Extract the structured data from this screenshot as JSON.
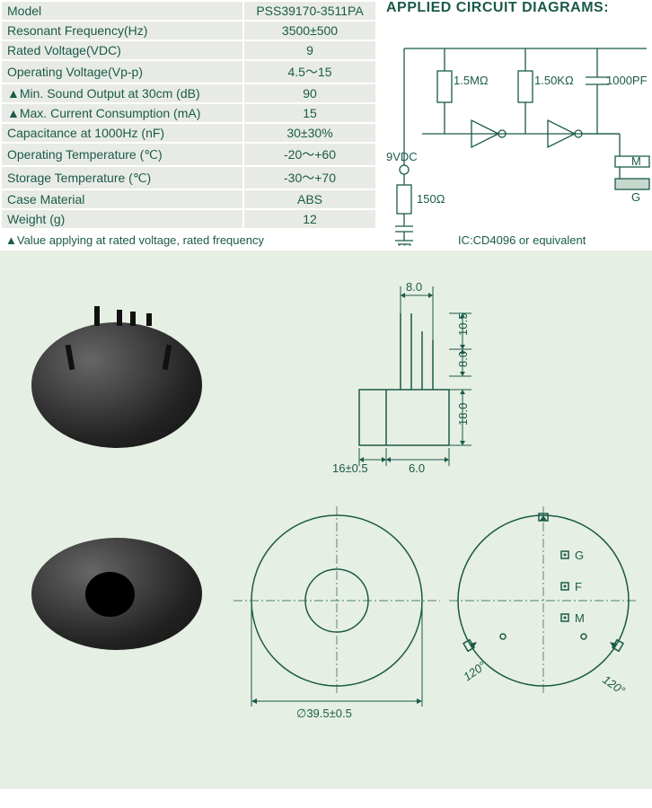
{
  "specs": {
    "rows": [
      {
        "label": "Model",
        "value": "PSS39170-3511PA"
      },
      {
        "label": "Resonant Frequency(Hz)",
        "value": "3500±500"
      },
      {
        "label": "Rated Voltage(VDC)",
        "value": "9"
      },
      {
        "label": "Operating Voltage(Vp-p)",
        "value": "4.5～15"
      },
      {
        "label": "▲Min. Sound Output at 30cm (dB)",
        "value": "90"
      },
      {
        "label": "▲Max. Current Consumption (mA)",
        "value": "15"
      },
      {
        "label": "Capacitance at 1000Hz (nF)",
        "value": "30±30%"
      },
      {
        "label": "Operating Temperature (℃)",
        "value": "-20～+60"
      },
      {
        "label": "Storage Temperature (℃)",
        "value": "-30～+70"
      },
      {
        "label": "Case Material",
        "value": "ABS"
      },
      {
        "label": "Weight (g)",
        "value": "12"
      }
    ],
    "note": "▲Value applying at rated voltage, rated frequency"
  },
  "circuit": {
    "title": "APPLIED CIRCUIT DIAGRAMS:",
    "r1": "1.5MΩ",
    "r2": "1.50KΩ",
    "c1": "1000PF",
    "vdc": "9VDC",
    "r3": "150Ω",
    "ic": "IC:CD4096 or equivalent",
    "m": "M",
    "g": "G",
    "f": "F",
    "colors": {
      "line": "#1a5a4a",
      "text": "#1a5a4a"
    }
  },
  "dimensions": {
    "top_width": "8.0",
    "pin_h1": "10.5",
    "pin_h2": "8.0",
    "body_h": "18.0",
    "body_w": "16±0.5",
    "base_w": "6.0",
    "diameter": "∅39.5±0.5",
    "angle": "120°",
    "labels": {
      "g": "G",
      "f": "F",
      "m": "M"
    }
  },
  "style": {
    "bg_lower": "#e6efe3",
    "row_bg": "#e8ebe5",
    "text_color": "#1a5a4a"
  }
}
